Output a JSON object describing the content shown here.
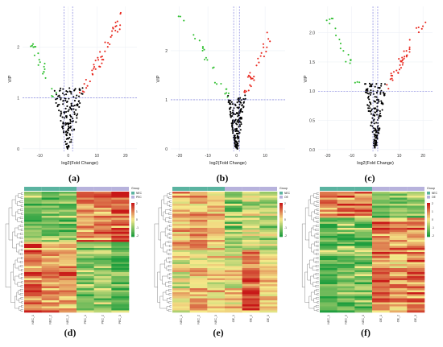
{
  "colors": {
    "up": "#e8281e",
    "down": "#34c134",
    "ns": "#000000",
    "threshold": "#6c6cd8",
    "heat_low": "#1f9e3e",
    "heat_mid": "#f5e98a",
    "heat_high": "#c81818",
    "group_a": "#5ab3a0",
    "group_b": "#b7b2dc"
  },
  "chart_data": [
    {
      "id": "a",
      "type": "scatter",
      "label": "(a)",
      "xlabel": "log2(Fold Change)",
      "ylabel": "VIP",
      "xticks": [
        -10,
        0,
        10,
        20
      ],
      "yticks": [
        0,
        1,
        2
      ],
      "xlim": [
        -16,
        24
      ],
      "ylim": [
        -0.05,
        2.8
      ],
      "vlines": [
        -1.5,
        1.5
      ],
      "hline": 1,
      "grid": true,
      "seed": 11,
      "series": [
        {
          "role": "up",
          "n": 46,
          "x": [
            2,
            20
          ],
          "y": [
            1.0,
            2.7
          ]
        },
        {
          "role": "down",
          "n": 22,
          "x": [
            -13,
            -2
          ],
          "y": [
            0.9,
            2.1
          ]
        },
        {
          "role": "ns",
          "n": 160,
          "x": [
            -8,
            8
          ],
          "y": [
            0,
            1.2
          ]
        }
      ]
    },
    {
      "id": "b",
      "type": "scatter",
      "label": "(b)",
      "xlabel": "log2(Fold Change)",
      "ylabel": "VIP",
      "xticks": [
        -20,
        -10,
        0,
        10
      ],
      "yticks": [
        0,
        1,
        2
      ],
      "xlim": [
        -23,
        17
      ],
      "ylim": [
        -0.05,
        2.9
      ],
      "vlines": [
        -1,
        1
      ],
      "hline": 1,
      "grid": true,
      "seed": 23,
      "series": [
        {
          "role": "up",
          "n": 30,
          "x": [
            1,
            12
          ],
          "y": [
            1.0,
            2.4
          ]
        },
        {
          "role": "down",
          "n": 24,
          "x": [
            -19,
            -1
          ],
          "y": [
            1.0,
            2.7
          ]
        },
        {
          "role": "ns",
          "n": 170,
          "x": [
            -5,
            5
          ],
          "y": [
            0,
            1.1
          ]
        }
      ]
    },
    {
      "id": "c",
      "type": "scatter",
      "label": "(c)",
      "xlabel": "log2(Fold Change)",
      "ylabel": "VIP",
      "xticks": [
        -20,
        -10,
        0,
        10,
        20
      ],
      "yticks": [
        0.0,
        0.5,
        1.0,
        1.5,
        2.0
      ],
      "ytick_labels": [
        "0.0",
        "0.5",
        "1.0",
        "1.5",
        "2.0"
      ],
      "xlim": [
        -24,
        24
      ],
      "ylim": [
        -0.03,
        2.45
      ],
      "vlines": [
        -1,
        1
      ],
      "hline": 1,
      "grid": true,
      "seed": 37,
      "series": [
        {
          "role": "up",
          "n": 40,
          "x": [
            2,
            22
          ],
          "y": [
            1.0,
            2.35
          ]
        },
        {
          "role": "down",
          "n": 20,
          "x": [
            -20,
            -4
          ],
          "y": [
            1.0,
            2.3
          ]
        },
        {
          "role": "ns",
          "n": 165,
          "x": [
            -7,
            7
          ],
          "y": [
            0,
            1.15
          ]
        }
      ]
    },
    {
      "id": "d",
      "type": "heatmap",
      "label": "(d)",
      "columns": [
        "NEC_1",
        "NEC_2",
        "NEC_3",
        "PEC_1",
        "PEC_2",
        "PEC_3"
      ],
      "groups": [
        "NEC",
        "PEC"
      ],
      "group_of_column": [
        0,
        0,
        0,
        1,
        1,
        1
      ],
      "legend_title": "Group",
      "color_scale_ticks": [
        "2",
        "1",
        "0",
        "-1",
        "-2"
      ],
      "n_rows": 60,
      "seed": 101,
      "pattern": [
        [
          0.2,
          0.2,
          0.2,
          0.75,
          0.8,
          0.9
        ],
        [
          0.8,
          0.7,
          0.75,
          0.25,
          0.3,
          0.2
        ]
      ],
      "split": 0.42
    },
    {
      "id": "e",
      "type": "heatmap",
      "label": "(e)",
      "columns": [
        "NEC_1",
        "NEC_2",
        "NEC_3",
        "OE_1",
        "OE_2",
        "OE_3"
      ],
      "groups": [
        "NEC",
        "OE"
      ],
      "group_of_column": [
        0,
        0,
        0,
        1,
        1,
        1
      ],
      "legend_title": "Group",
      "color_scale_ticks": [
        "2",
        "1",
        "0",
        "-1",
        "-2"
      ],
      "n_rows": 60,
      "seed": 202,
      "pattern": [
        [
          0.65,
          0.7,
          0.6,
          0.3,
          0.4,
          0.35
        ],
        [
          0.45,
          0.55,
          0.5,
          0.5,
          0.85,
          0.55
        ]
      ],
      "split": 0.48
    },
    {
      "id": "f",
      "type": "heatmap",
      "label": "(f)",
      "columns": [
        "NEC_1",
        "NEC_2",
        "NEC_3",
        "OE_1",
        "OE_2",
        "OE_3"
      ],
      "groups": [
        "NEC",
        "OE"
      ],
      "group_of_column": [
        0,
        0,
        0,
        1,
        1,
        1
      ],
      "legend_title": "Group",
      "color_scale_ticks": [
        "2",
        "1",
        "0",
        "-1",
        "-2"
      ],
      "n_rows": 60,
      "seed": 303,
      "pattern": [
        [
          0.75,
          0.8,
          0.7,
          0.2,
          0.25,
          0.3
        ],
        [
          0.15,
          0.2,
          0.2,
          0.8,
          0.7,
          0.75
        ]
      ],
      "split": 0.22
    }
  ]
}
